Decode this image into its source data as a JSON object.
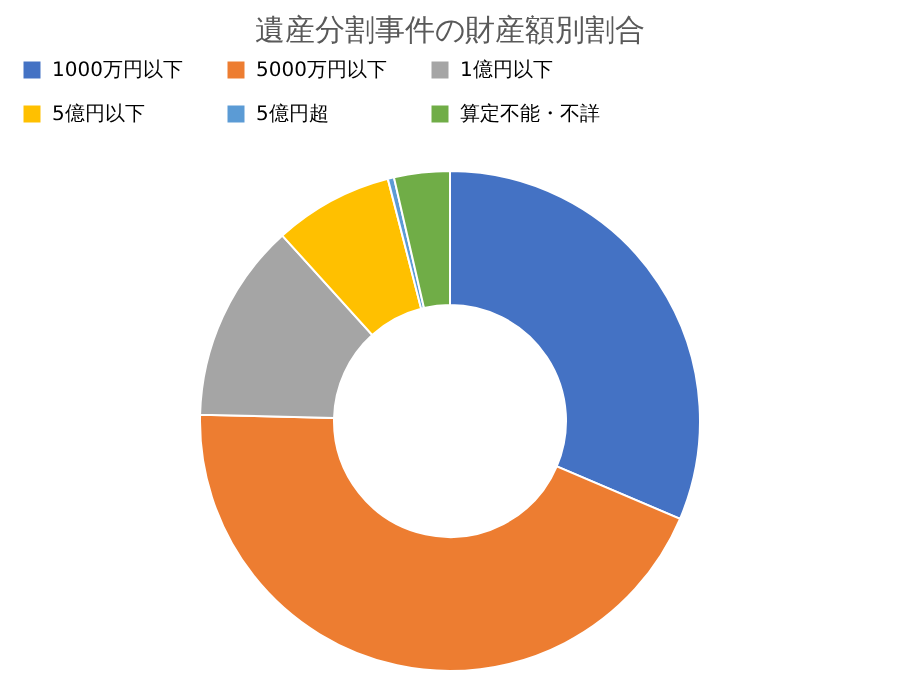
{
  "chart_data": {
    "type": "donut",
    "title": "遺産分割事件の財産額別割合",
    "categories": [
      "1000万円以下",
      "5000万円以下",
      "1億円以下",
      "5億円以下",
      "5億円超",
      "算定不能・不詳"
    ],
    "values": [
      31.4,
      44.0,
      12.9,
      7.7,
      0.4,
      3.6
    ],
    "colors": [
      "#4472c4",
      "#ed7d31",
      "#a5a5a5",
      "#ffc000",
      "#5b9bd5",
      "#70ad47"
    ],
    "legend": "top"
  }
}
